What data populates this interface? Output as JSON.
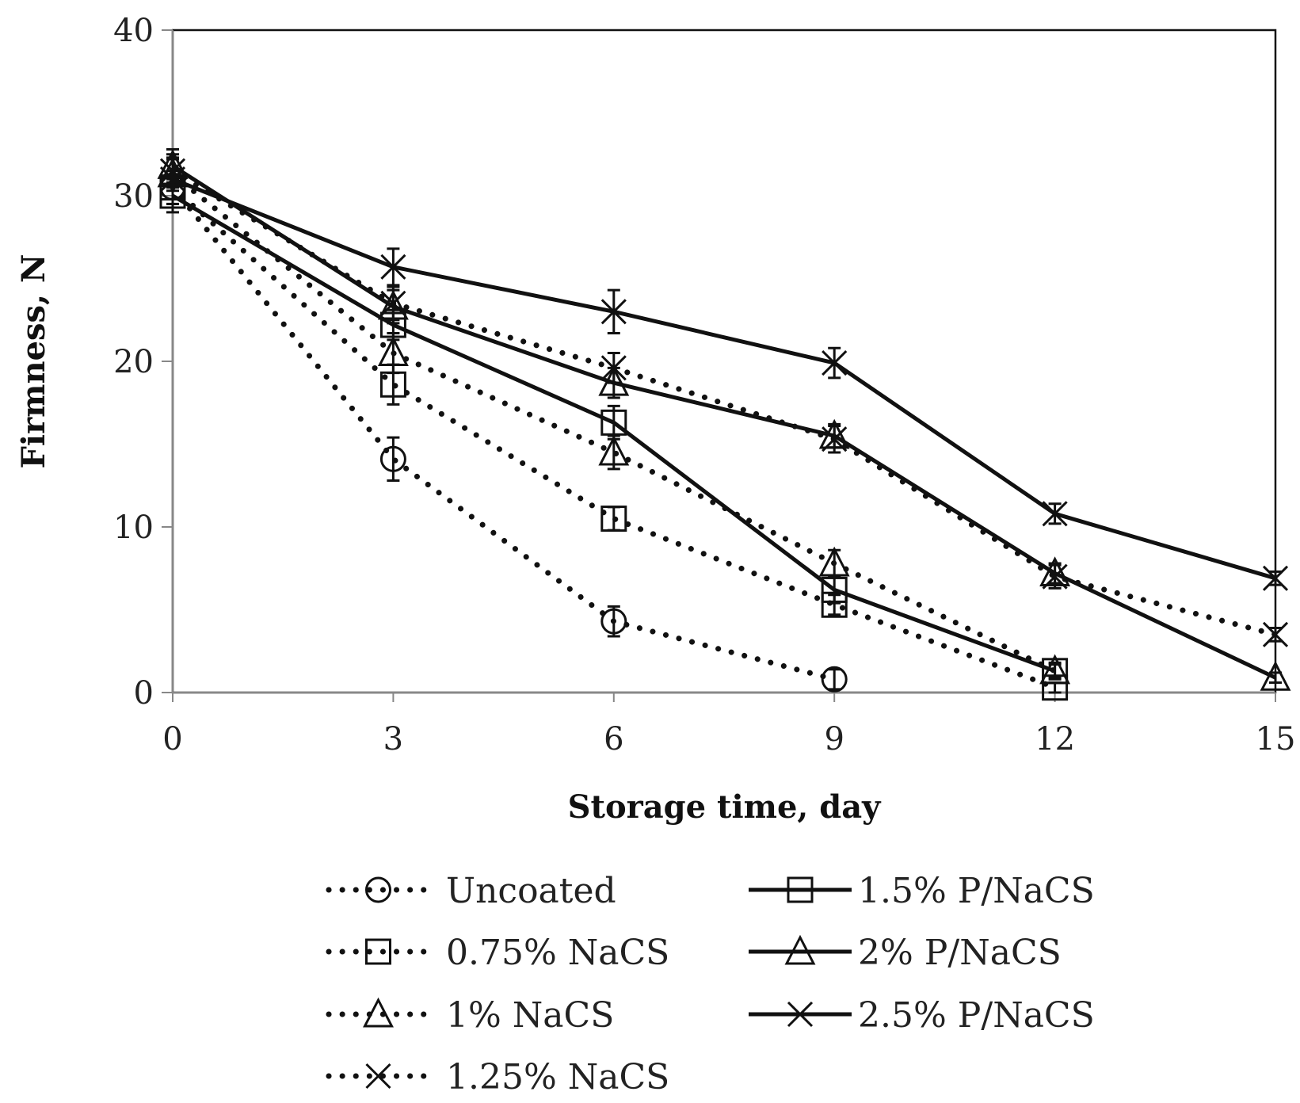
{
  "chart_data": {
    "type": "line",
    "title": "",
    "xlabel": "Storage time, day",
    "ylabel": "Firmness, N",
    "xlim": [
      0,
      15
    ],
    "ylim": [
      0,
      40
    ],
    "xticks": [
      0,
      3,
      6,
      9,
      12,
      15
    ],
    "yticks": [
      0,
      10,
      20,
      30,
      40
    ],
    "grid": false,
    "legend_position": "bottom",
    "series": [
      {
        "name": "Uncoated",
        "style": "dotted",
        "marker": "circle",
        "x": [
          0,
          3,
          6,
          9
        ],
        "values": [
          30.5,
          14.1,
          4.3,
          0.8
        ],
        "errors": [
          1.0,
          1.3,
          0.9,
          0.6
        ]
      },
      {
        "name": "0.75% NaCS",
        "style": "dotted",
        "marker": "square",
        "x": [
          0,
          3,
          6,
          9,
          12
        ],
        "values": [
          30.5,
          18.6,
          10.5,
          5.3,
          0.3
        ],
        "errors": [
          1.0,
          1.2,
          0.7,
          0.6,
          0.3
        ]
      },
      {
        "name": "1% NaCS",
        "style": "dotted",
        "marker": "triangle",
        "x": [
          0,
          3,
          6,
          9,
          12
        ],
        "values": [
          31.3,
          20.5,
          14.5,
          7.8,
          1.3
        ],
        "errors": [
          1.0,
          1.2,
          1.0,
          0.8,
          0.5
        ]
      },
      {
        "name": "1.25% NaCS",
        "style": "dotted",
        "marker": "x",
        "x": [
          0,
          3,
          6,
          9,
          12,
          15
        ],
        "values": [
          31.5,
          23.5,
          19.6,
          15.3,
          7.0,
          3.5
        ],
        "errors": [
          1.0,
          1.0,
          0.9,
          0.8,
          0.7,
          0.4
        ]
      },
      {
        "name": "1.5% P/NaCS",
        "style": "solid",
        "marker": "square",
        "x": [
          0,
          3,
          6,
          9,
          12
        ],
        "values": [
          30.0,
          22.2,
          16.3,
          6.2,
          1.3
        ],
        "errors": [
          1.0,
          0.9,
          1.0,
          0.8,
          0.4
        ]
      },
      {
        "name": "2% P/NaCS",
        "style": "solid",
        "marker": "triangle",
        "x": [
          0,
          3,
          6,
          9,
          12,
          15
        ],
        "values": [
          31.8,
          23.3,
          18.7,
          15.5,
          7.2,
          0.9
        ],
        "errors": [
          1.0,
          1.0,
          0.9,
          0.7,
          0.6,
          0.3
        ]
      },
      {
        "name": "2.5% P/NaCS",
        "style": "solid",
        "marker": "x",
        "x": [
          0,
          3,
          6,
          9,
          12,
          15
        ],
        "values": [
          31.0,
          25.7,
          23.0,
          19.9,
          10.8,
          6.9
        ],
        "errors": [
          1.2,
          1.1,
          1.3,
          0.9,
          0.6,
          0.4
        ]
      }
    ]
  }
}
